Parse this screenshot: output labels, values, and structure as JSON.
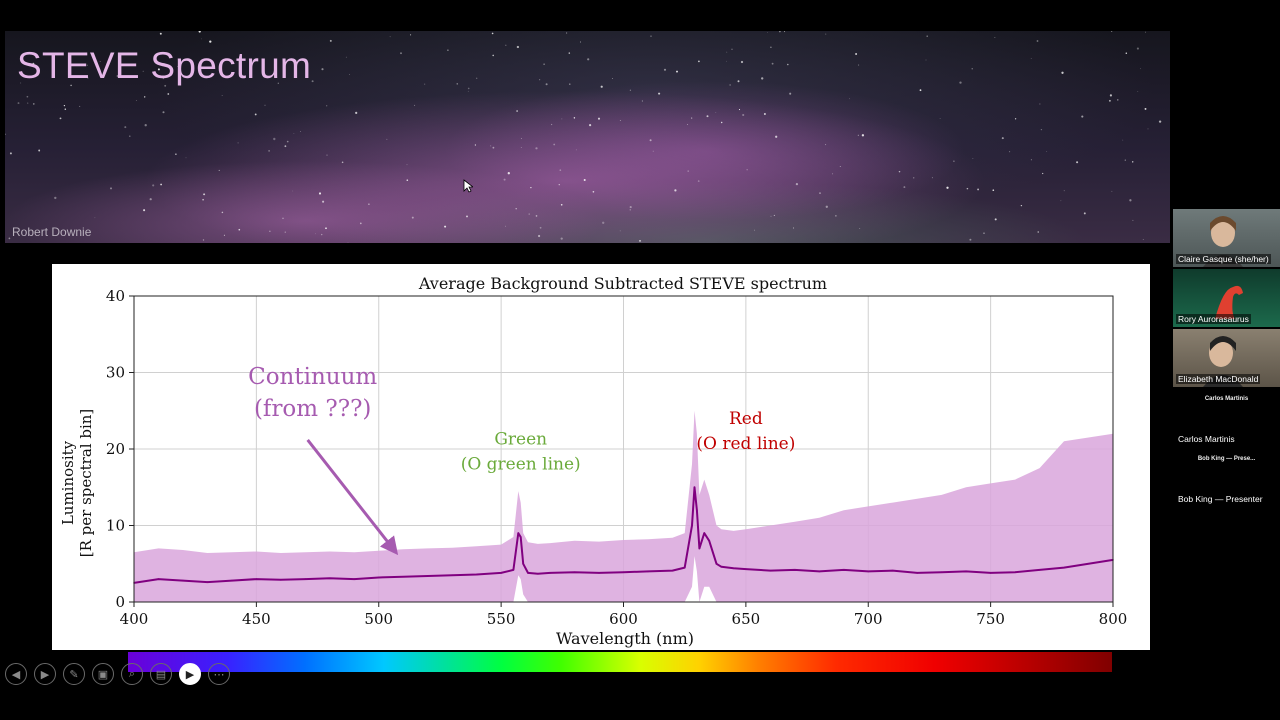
{
  "slide": {
    "title": "STEVE Spectrum",
    "photo_credit": "Robert Downie"
  },
  "chart_data": {
    "type": "line",
    "title": "Average Background Subtracted STEVE spectrum",
    "xlabel": "Wavelength (nm)",
    "ylabel_line1": "Luminosity",
    "ylabel_line2": "[R per spectral bin]",
    "xlim": [
      400,
      800
    ],
    "ylim": [
      0,
      40
    ],
    "xticks": [
      400,
      450,
      500,
      550,
      600,
      650,
      700,
      750,
      800
    ],
    "yticks": [
      0,
      10,
      20,
      30,
      40
    ],
    "grid": true,
    "colors": {
      "line": "#800080",
      "band": "#d9a6dc"
    },
    "series": [
      {
        "x": [
          400,
          410,
          420,
          430,
          440,
          450,
          460,
          470,
          480,
          490,
          500,
          510,
          520,
          530,
          540,
          550,
          555,
          557,
          558,
          559,
          561,
          565,
          570,
          580,
          590,
          600,
          610,
          620,
          625,
          628,
          629,
          630,
          631,
          633,
          635,
          638,
          640,
          645,
          650,
          660,
          670,
          680,
          690,
          700,
          710,
          720,
          730,
          740,
          750,
          760,
          770,
          780,
          790,
          800
        ],
        "values": [
          2.5,
          3.0,
          2.8,
          2.6,
          2.8,
          3.0,
          2.9,
          3.0,
          3.1,
          3.0,
          3.2,
          3.3,
          3.4,
          3.5,
          3.6,
          3.8,
          4.2,
          9.0,
          8.5,
          5.0,
          3.8,
          3.7,
          3.8,
          3.9,
          3.8,
          3.9,
          4.0,
          4.1,
          4.5,
          10.0,
          15.0,
          12.0,
          7.0,
          9.0,
          8.0,
          5.0,
          4.6,
          4.4,
          4.3,
          4.1,
          4.2,
          4.0,
          4.2,
          4.0,
          4.1,
          3.8,
          3.9,
          4.0,
          3.8,
          3.9,
          4.2,
          4.5,
          5.0,
          5.5
        ],
        "upper": [
          6.5,
          7.0,
          6.8,
          6.4,
          6.5,
          6.6,
          6.4,
          6.5,
          6.6,
          6.5,
          6.7,
          6.9,
          7.0,
          7.1,
          7.3,
          7.5,
          8.5,
          14.5,
          13.0,
          9.0,
          7.8,
          7.6,
          7.7,
          8.0,
          7.9,
          8.1,
          8.2,
          8.4,
          9.0,
          18.0,
          25.0,
          22.0,
          14.0,
          16.0,
          14.0,
          10.0,
          9.5,
          9.3,
          9.5,
          10.0,
          10.5,
          11.0,
          12.0,
          12.5,
          13.0,
          13.5,
          14.0,
          15.0,
          15.5,
          16.0,
          17.5,
          21.0,
          21.5,
          22.0
        ],
        "lower": [
          0.0,
          0.0,
          0.0,
          0.0,
          0.0,
          0.0,
          0.0,
          0.0,
          0.0,
          0.0,
          0.0,
          0.0,
          0.0,
          0.0,
          0.0,
          0.0,
          0.0,
          3.5,
          3.0,
          1.0,
          0.0,
          0.0,
          0.0,
          0.0,
          0.0,
          0.0,
          0.0,
          0.0,
          0.0,
          2.0,
          6.0,
          4.0,
          0.0,
          2.0,
          2.0,
          0.0,
          0.0,
          0.0,
          0.0,
          0.0,
          0.0,
          0.0,
          0.0,
          0.0,
          0.0,
          0.0,
          0.0,
          0.0,
          0.0,
          0.0,
          0.0,
          0.0,
          0.0,
          0.0
        ]
      }
    ],
    "annotations": [
      {
        "id": "continuum",
        "line1": "Continuum",
        "line2": "(from ???)",
        "color": "#a65bb0",
        "x": 473,
        "y": 28.5,
        "arrow_to": [
          507,
          6.5
        ]
      },
      {
        "id": "green",
        "line1": "Green",
        "line2": "(O green line)",
        "color": "#6aaa3a",
        "x": 558,
        "y": 20.6
      },
      {
        "id": "red",
        "line1": "Red",
        "line2": "(O red line)",
        "color": "#c00000",
        "x": 650,
        "y": 23.3
      }
    ]
  },
  "participants": [
    {
      "name": "Claire Gasque (she/her)",
      "video": "person"
    },
    {
      "name": "Rory Aurorasaurus",
      "video": "logo"
    },
    {
      "name": "Elizabeth MacDonald",
      "video": "person"
    },
    {
      "name": "Carlos Martinis",
      "video": "none",
      "center_label": "Carlos Martinis"
    },
    {
      "name": "Bob King — Presenter",
      "video": "none",
      "center_label": "Bob King — Prese..."
    }
  ],
  "controls": [
    {
      "icon": "previous-icon",
      "glyph": "◀"
    },
    {
      "icon": "next-icon",
      "glyph": "▶"
    },
    {
      "icon": "pen-icon",
      "glyph": "✎"
    },
    {
      "icon": "slides-icon",
      "glyph": "▣"
    },
    {
      "icon": "zoom-icon",
      "glyph": "⌕"
    },
    {
      "icon": "subtitles-icon",
      "glyph": "▤"
    },
    {
      "icon": "camera-icon",
      "glyph": "▶",
      "active": true
    },
    {
      "icon": "more-icon",
      "glyph": "⋯"
    }
  ]
}
